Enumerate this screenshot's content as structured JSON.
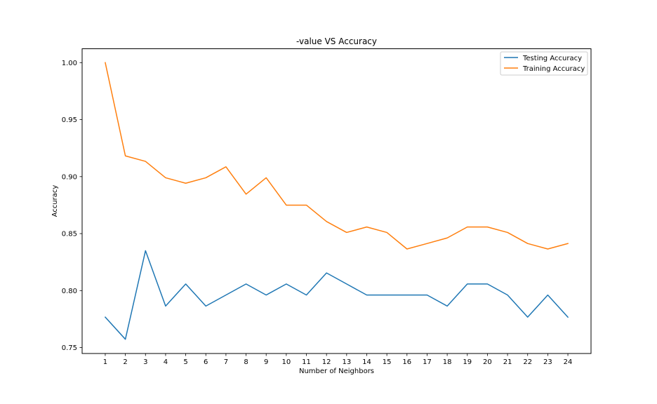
{
  "chart_data": {
    "type": "line",
    "title": "-value VS Accuracy",
    "xlabel": "Number of Neighbors",
    "ylabel": "Accuracy",
    "x": [
      1,
      2,
      3,
      4,
      5,
      6,
      7,
      8,
      9,
      10,
      11,
      12,
      13,
      14,
      15,
      16,
      17,
      18,
      19,
      20,
      21,
      22,
      23,
      24
    ],
    "xticks": [
      "1",
      "2",
      "3",
      "4",
      "5",
      "6",
      "7",
      "8",
      "9",
      "10",
      "11",
      "12",
      "13",
      "14",
      "15",
      "16",
      "17",
      "18",
      "19",
      "20",
      "21",
      "22",
      "23",
      "24"
    ],
    "yticks": [
      "0.75",
      "0.80",
      "0.85",
      "0.90",
      "0.95",
      "1.00"
    ],
    "ytick_values": [
      0.75,
      0.8,
      0.85,
      0.9,
      0.95,
      1.0
    ],
    "xlim": [
      -0.15,
      25.15
    ],
    "ylim": [
      0.7448,
      1.0122
    ],
    "grid": false,
    "legend_position": "top-right",
    "series": [
      {
        "name": "Testing Accuracy",
        "color": "#1f77b4",
        "values": [
          0.7767,
          0.7573,
          0.835,
          0.7864,
          0.8058,
          0.7864,
          0.7961,
          0.8058,
          0.7961,
          0.8058,
          0.7961,
          0.8155,
          0.8058,
          0.7961,
          0.7961,
          0.7961,
          0.7961,
          0.7864,
          0.8058,
          0.8058,
          0.7961,
          0.7767,
          0.7961,
          0.7767
        ]
      },
      {
        "name": "Training Accuracy",
        "color": "#ff7f0e",
        "values": [
          1.0,
          0.9182,
          0.9134,
          0.899,
          0.8942,
          0.899,
          0.9086,
          0.8846,
          0.899,
          0.875,
          0.875,
          0.8606,
          0.851,
          0.8558,
          0.851,
          0.8365,
          0.8413,
          0.8462,
          0.8558,
          0.8558,
          0.851,
          0.8413,
          0.8365,
          0.8413
        ]
      }
    ]
  }
}
